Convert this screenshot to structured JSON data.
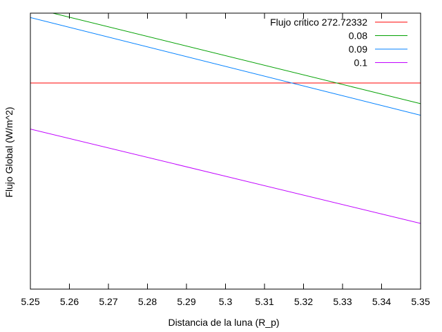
{
  "chart_data": {
    "type": "line",
    "xlabel": "Distancia de la luna (R_p)",
    "ylabel": "Flujo Global (W/m^2)",
    "xlim": [
      5.25,
      5.35
    ],
    "x_ticks": [
      "5.25",
      "5.26",
      "5.27",
      "5.28",
      "5.29",
      "5.3",
      "5.31",
      "5.32",
      "5.33",
      "5.34",
      "5.35"
    ],
    "ylim": [
      0,
      1
    ],
    "y_ticks_shown": false,
    "grid": false,
    "legend_position": "top-right",
    "series": [
      {
        "name": "Flujo critico 272.72332",
        "color": "#ff0000",
        "x": [
          5.25,
          5.35
        ],
        "y": [
          0.747,
          0.747
        ]
      },
      {
        "name": "0.08",
        "color": "#00a000",
        "x": [
          5.25,
          5.35
        ],
        "y": [
          1.02,
          0.672
        ]
      },
      {
        "name": "0.09",
        "color": "#0080ff",
        "x": [
          5.25,
          5.35
        ],
        "y": [
          0.984,
          0.63
        ]
      },
      {
        "name": "0.1",
        "color": "#c000ff",
        "x": [
          5.25,
          5.35
        ],
        "y": [
          0.58,
          0.238
        ]
      }
    ]
  }
}
